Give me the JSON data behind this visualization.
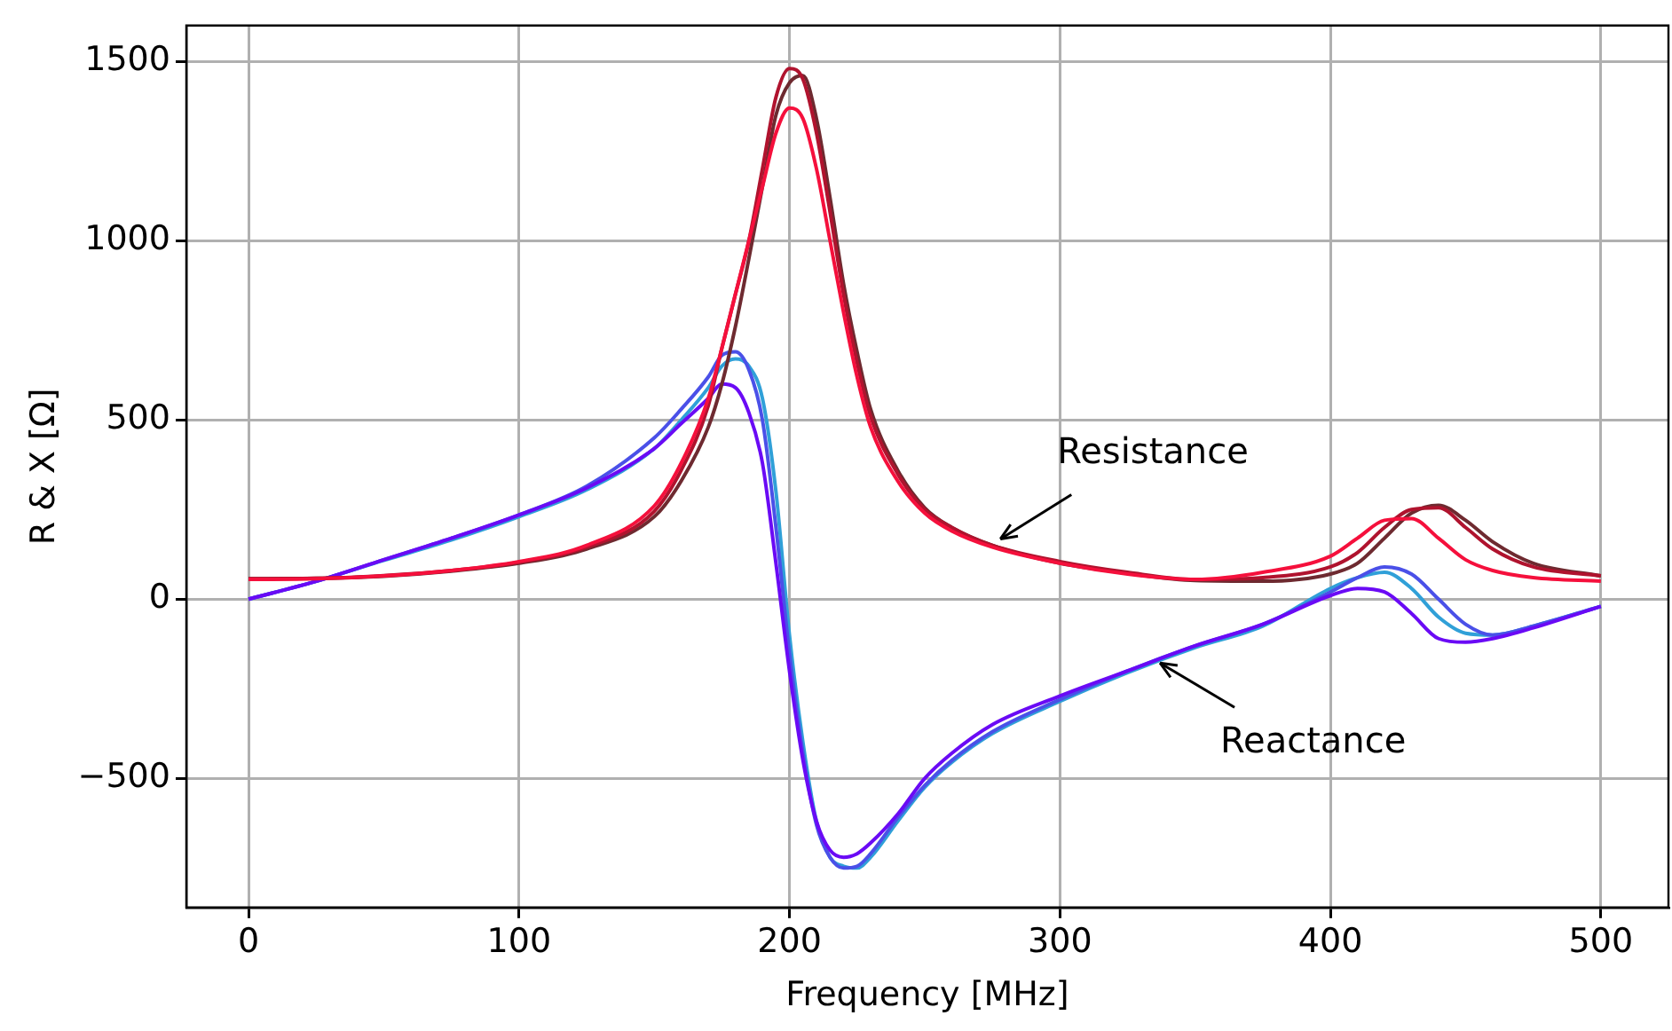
{
  "chart_data": {
    "type": "line",
    "xlabel": "Frequency [MHz]",
    "ylabel": "R & X [Ω]",
    "x": [
      0,
      25,
      50,
      75,
      100,
      125,
      150,
      160,
      170,
      175,
      180,
      185,
      190,
      195,
      200,
      205,
      210,
      215,
      220,
      225,
      230,
      240,
      250,
      260,
      275,
      300,
      325,
      350,
      375,
      400,
      410,
      420,
      430,
      440,
      450,
      460,
      475,
      500
    ],
    "series": [
      {
        "color": "#f5103c",
        "values": [
          55,
          57,
          65,
          80,
          105,
          150,
          260,
          380,
          560,
          700,
          850,
          1000,
          1150,
          1300,
          1370,
          1340,
          1200,
          1000,
          800,
          620,
          480,
          330,
          240,
          190,
          145,
          100,
          70,
          55,
          75,
          120,
          170,
          220,
          225,
          170,
          110,
          80,
          60,
          50
        ]
      },
      {
        "color": "#b0132e",
        "values": [
          57,
          58,
          66,
          80,
          103,
          145,
          245,
          360,
          540,
          700,
          850,
          1000,
          1200,
          1400,
          1480,
          1450,
          1300,
          1080,
          850,
          660,
          510,
          350,
          250,
          200,
          150,
          105,
          75,
          55,
          60,
          90,
          130,
          200,
          250,
          255,
          200,
          140,
          90,
          65
        ]
      },
      {
        "color": "#6e2a30",
        "values": [
          57,
          58,
          64,
          78,
          100,
          140,
          230,
          330,
          480,
          600,
          760,
          950,
          1150,
          1350,
          1440,
          1460,
          1340,
          1120,
          880,
          690,
          530,
          360,
          255,
          200,
          150,
          100,
          72,
          52,
          50,
          70,
          100,
          170,
          240,
          262,
          220,
          160,
          100,
          65
        ]
      },
      {
        "color": "#6a0af5",
        "values": [
          0,
          50,
          110,
          170,
          235,
          310,
          420,
          490,
          560,
          600,
          590,
          520,
          380,
          100,
          -200,
          -450,
          -620,
          -700,
          -720,
          -710,
          -680,
          -600,
          -500,
          -430,
          -350,
          -270,
          -200,
          -130,
          -70,
          10,
          30,
          20,
          -40,
          -110,
          -120,
          -110,
          -80,
          -20
        ]
      },
      {
        "color": "#4a50e8",
        "values": [
          0,
          50,
          110,
          170,
          235,
          315,
          450,
          530,
          620,
          680,
          690,
          640,
          500,
          200,
          -150,
          -430,
          -630,
          -720,
          -750,
          -745,
          -710,
          -610,
          -520,
          -450,
          -370,
          -280,
          -200,
          -130,
          -70,
          20,
          60,
          90,
          70,
          0,
          -70,
          -100,
          -75,
          -20
        ]
      },
      {
        "color": "#30a0d8",
        "values": [
          0,
          50,
          108,
          165,
          230,
          305,
          420,
          500,
          590,
          650,
          670,
          650,
          560,
          300,
          -100,
          -400,
          -620,
          -720,
          -745,
          -750,
          -720,
          -620,
          -525,
          -455,
          -375,
          -285,
          -205,
          -135,
          -75,
          30,
          60,
          75,
          30,
          -50,
          -95,
          -100,
          -75,
          -20
        ]
      }
    ],
    "annotations": [
      {
        "text": "Resistance",
        "x": 278,
        "y": 168
      },
      {
        "text": "Reactance",
        "x": 337,
        "y": -178
      }
    ],
    "xlim": [
      -23,
      525
    ],
    "ylim": [
      -860,
      1600
    ],
    "xticks": [
      0,
      100,
      200,
      300,
      400,
      500
    ],
    "yticks": [
      {
        "value": -500,
        "label": "−500"
      },
      0,
      500,
      1000,
      1500
    ],
    "grid": true,
    "legend": false,
    "marker": "none",
    "line_style": "solid"
  }
}
